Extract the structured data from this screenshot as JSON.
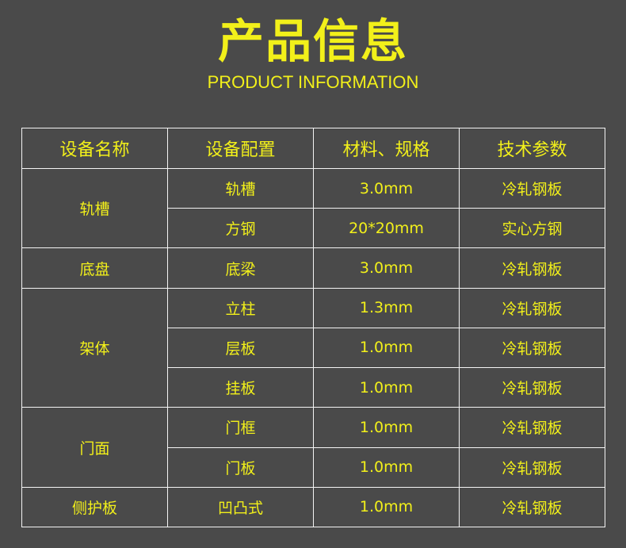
{
  "header": {
    "title": "产品信息",
    "subtitle": "PRODUCT INFORMATION"
  },
  "table": {
    "columns": [
      "设备名称",
      "设备配置",
      "材料、规格",
      "技术参数"
    ],
    "groups": [
      {
        "name": "轨槽",
        "rows": [
          [
            "轨槽",
            "3.0mm",
            "冷轧钢板"
          ],
          [
            "方钢",
            "20*20mm",
            "实心方钢"
          ]
        ]
      },
      {
        "name": "底盘",
        "rows": [
          [
            "底梁",
            "3.0mm",
            "冷轧钢板"
          ]
        ]
      },
      {
        "name": "架体",
        "rows": [
          [
            "立柱",
            "1.3mm",
            "冷轧钢板"
          ],
          [
            "层板",
            "1.0mm",
            "冷轧钢板"
          ],
          [
            "挂板",
            "1.0mm",
            "冷轧钢板"
          ]
        ]
      },
      {
        "name": "门面",
        "rows": [
          [
            "门框",
            "1.0mm",
            "冷轧钢板"
          ],
          [
            "门板",
            "1.0mm",
            "冷轧钢板"
          ]
        ]
      },
      {
        "name": "侧护板",
        "rows": [
          [
            "凹凸式",
            "1.0mm",
            "冷轧钢板"
          ]
        ]
      }
    ]
  },
  "colors": {
    "background": "#4a4a4a",
    "text": "#f2f01a",
    "border": "#f4f4f4"
  }
}
